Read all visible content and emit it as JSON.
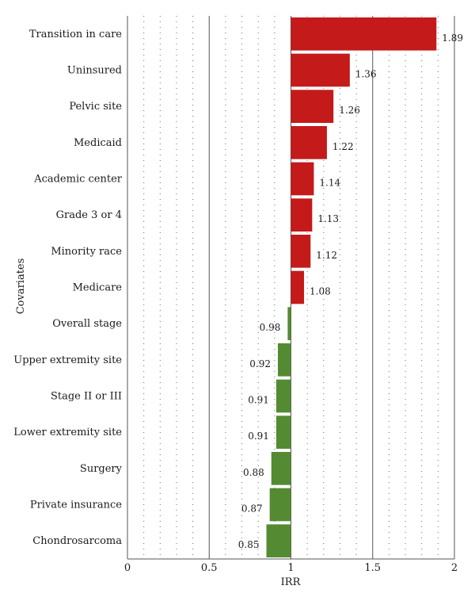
{
  "chart_data": {
    "type": "bar",
    "orientation": "horizontal",
    "xlabel": "IRR",
    "ylabel": "Covariates",
    "xlim": [
      0,
      2
    ],
    "reference": 1,
    "xticks": [
      0,
      0.5,
      1,
      1.5,
      2
    ],
    "xtick_labels": [
      "0",
      "0.5",
      "1",
      "1.5",
      "2"
    ],
    "minor_grid_step": 0.1,
    "colors": {
      "above": "#c41a1a",
      "below": "#548b32"
    },
    "categories": [
      "Transition in care",
      "Uninsured",
      "Pelvic site",
      "Medicaid",
      "Academic center",
      "Grade 3 or 4",
      "Minority race",
      "Medicare",
      "Overall stage",
      "Upper extremity site",
      "Stage II or III",
      "Lower extremity site",
      "Surgery",
      "Private insurance",
      "Chondrosarcoma"
    ],
    "values": [
      1.89,
      1.36,
      1.26,
      1.22,
      1.14,
      1.13,
      1.12,
      1.08,
      0.98,
      0.92,
      0.91,
      0.91,
      0.88,
      0.87,
      0.85
    ],
    "value_labels": [
      "1.89",
      "1.36",
      "1.26",
      "1.22",
      "1.14",
      "1.13",
      "1.12",
      "1.08",
      "0.98",
      "0.92",
      "0.91",
      "0.91",
      "0.88",
      "0.87",
      "0.85"
    ]
  }
}
